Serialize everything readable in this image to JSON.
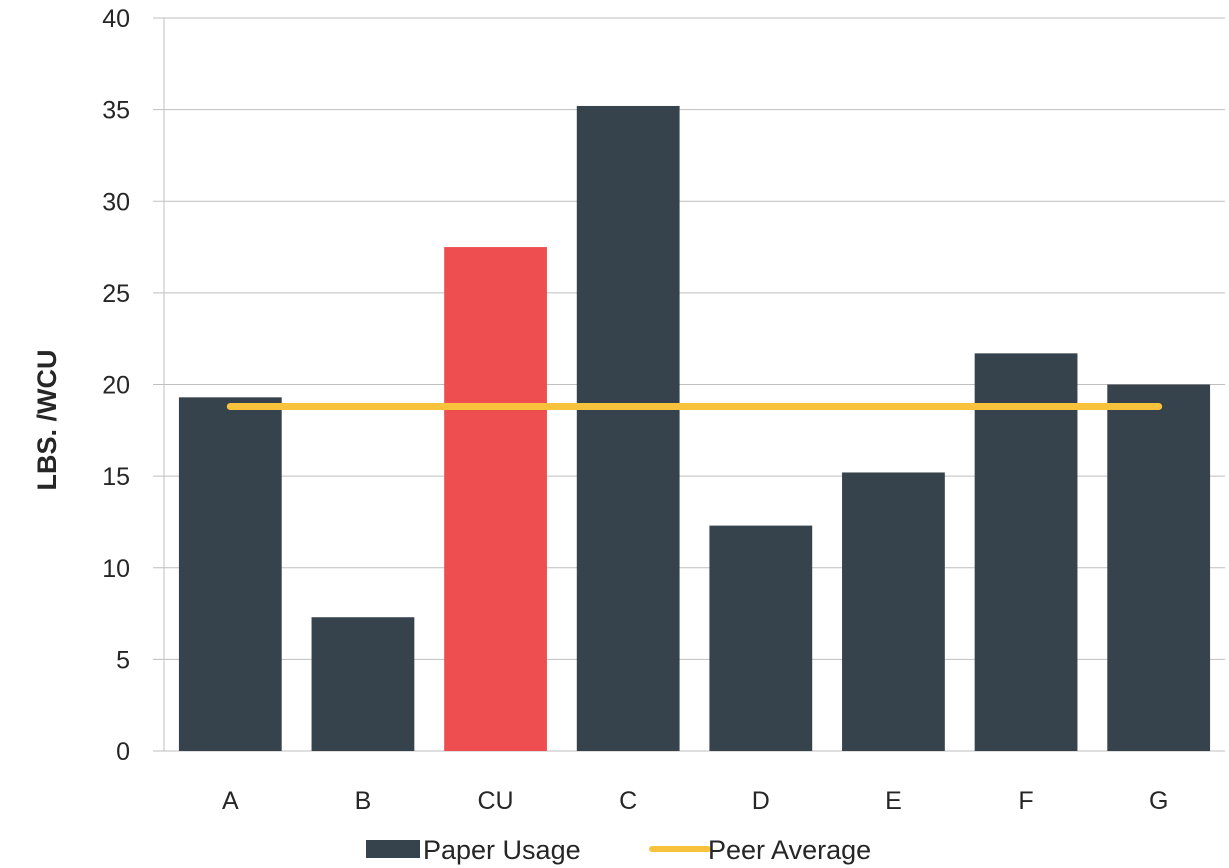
{
  "chart_data": {
    "type": "bar",
    "categories": [
      "A",
      "B",
      "CU",
      "C",
      "D",
      "E",
      "F",
      "G"
    ],
    "series": [
      {
        "name": "Paper Usage",
        "values": [
          19.3,
          7.3,
          27.5,
          35.2,
          12.3,
          15.2,
          21.7,
          20.0
        ],
        "color": "#37434c",
        "highlight": {
          "category": "CU",
          "color": "#ef4e50"
        }
      },
      {
        "name": "Peer Average",
        "type": "line",
        "value": 18.8,
        "color": "#f9c23c"
      }
    ],
    "ylabel": "LBS. /WCU",
    "xlabel": "",
    "ylim": [
      0,
      40
    ],
    "yticks": [
      0,
      5,
      10,
      15,
      20,
      25,
      30,
      35,
      40
    ],
    "grid": true,
    "legend": "bottom"
  }
}
